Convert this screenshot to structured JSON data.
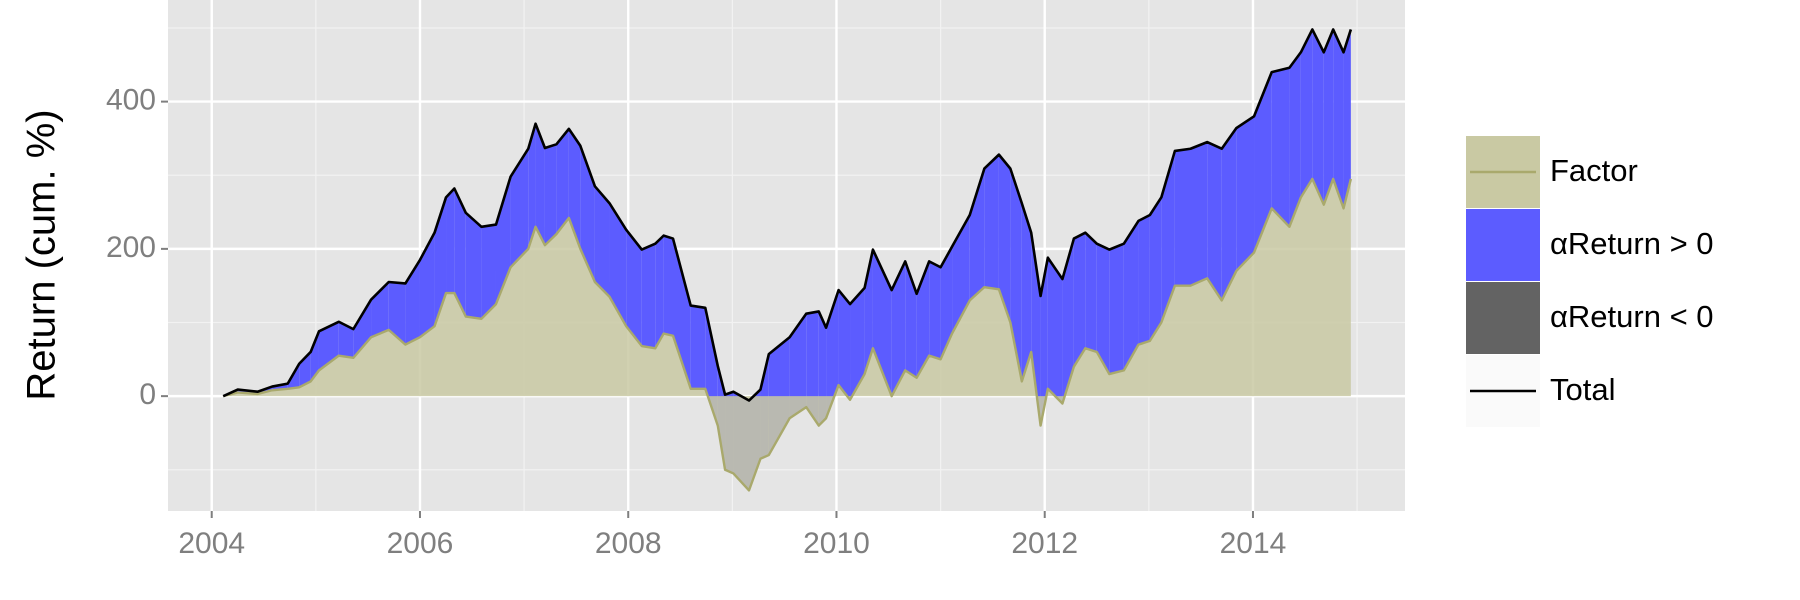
{
  "chart_data": {
    "type": "area",
    "y_label": "Return (cum. %)",
    "x": [
      2004.11,
      2004.25,
      2004.44,
      2004.58,
      2004.73,
      2004.84,
      2004.95,
      2005.03,
      2005.22,
      2005.36,
      2005.53,
      2005.7,
      2005.86,
      2006.0,
      2006.14,
      2006.25,
      2006.33,
      2006.44,
      2006.59,
      2006.73,
      2006.87,
      2007.04,
      2007.11,
      2007.2,
      2007.31,
      2007.43,
      2007.54,
      2007.68,
      2007.82,
      2007.98,
      2008.13,
      2008.26,
      2008.34,
      2008.43,
      2008.6,
      2008.74,
      2008.86,
      2008.93,
      2009.01,
      2009.16,
      2009.27,
      2009.35,
      2009.55,
      2009.71,
      2009.83,
      2009.9,
      2010.02,
      2010.13,
      2010.27,
      2010.35,
      2010.53,
      2010.66,
      2010.77,
      2010.89,
      2011.0,
      2011.11,
      2011.28,
      2011.42,
      2011.56,
      2011.67,
      2011.78,
      2011.87,
      2011.96,
      2012.03,
      2012.17,
      2012.28,
      2012.39,
      2012.5,
      2012.62,
      2012.76,
      2012.9,
      2013.01,
      2013.12,
      2013.25,
      2013.4,
      2013.56,
      2013.7,
      2013.84,
      2014.01,
      2014.18,
      2014.35,
      2014.46,
      2014.57,
      2014.68,
      2014.77,
      2014.87,
      2014.94
    ],
    "series": [
      {
        "name": "Factor",
        "color": "#a9a96c",
        "values": [
          0,
          5,
          3,
          8,
          10,
          12,
          20,
          35,
          55,
          52,
          80,
          90,
          70,
          80,
          95,
          140,
          140,
          108,
          105,
          125,
          175,
          200,
          230,
          205,
          220,
          242,
          200,
          155,
          135,
          95,
          68,
          65,
          85,
          82,
          10,
          10,
          -40,
          -100,
          -105,
          -128,
          -85,
          -80,
          -30,
          -15,
          -40,
          -30,
          15,
          -5,
          30,
          65,
          0,
          35,
          25,
          55,
          50,
          85,
          130,
          148,
          145,
          100,
          20,
          60,
          -40,
          10,
          -10,
          40,
          65,
          60,
          30,
          35,
          70,
          75,
          100,
          150,
          150,
          160,
          130,
          170,
          195,
          255,
          230,
          270,
          295,
          260,
          295,
          255,
          295
        ]
      },
      {
        "name": "Total",
        "color": "#000000",
        "values": [
          0,
          9,
          6,
          13,
          17,
          44,
          60,
          88,
          101,
          91,
          131,
          155,
          153,
          185,
          222,
          270,
          282,
          249,
          230,
          233,
          298,
          336,
          370,
          337,
          342,
          363,
          340,
          285,
          262,
          226,
          199,
          207,
          218,
          214,
          123,
          120,
          41,
          2,
          6,
          -6,
          9,
          57,
          80,
          112,
          115,
          93,
          144,
          125,
          147,
          199,
          144,
          183,
          139,
          183,
          175,
          203,
          246,
          309,
          328,
          309,
          262,
          222,
          136,
          188,
          159,
          214,
          222,
          207,
          199,
          207,
          238,
          246,
          270,
          333,
          336,
          345,
          336,
          364,
          380,
          440,
          446,
          467,
          498,
          467,
          498,
          467,
          498
        ]
      }
    ],
    "fills": [
      {
        "name": "αReturn > 0",
        "color": "#5c5cff"
      },
      {
        "name": "αReturn < 0",
        "color": "#636363"
      }
    ],
    "factor_fill": "#c9c9a3",
    "xlim": [
      2003.58,
      2015.46
    ],
    "xticks": [
      2004,
      2006,
      2008,
      2010,
      2012,
      2014
    ],
    "ylim": [
      -156,
      538
    ],
    "yticks": [
      0,
      200,
      400
    ],
    "grid": true
  }
}
